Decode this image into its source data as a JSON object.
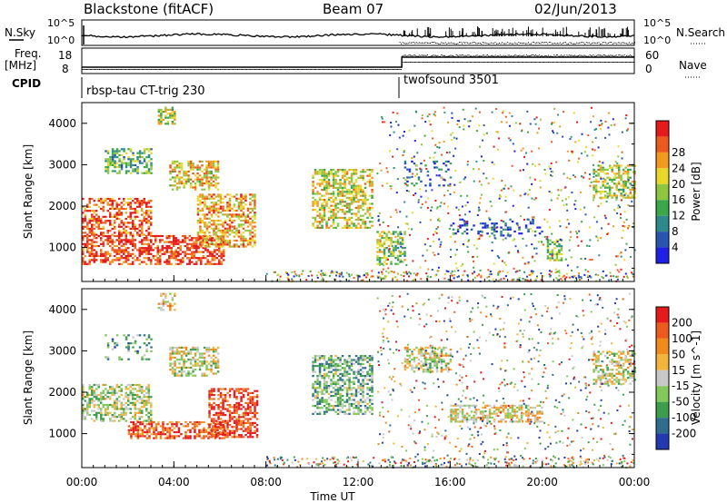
{
  "header": {
    "title": "Blackstone (fitACF)",
    "beam": "Beam 07",
    "date": "02/Jun/2013"
  },
  "noise_panel": {
    "left_label": "N.Sky",
    "right_label": "N.Search",
    "left_ticks": [
      "10^5",
      "10^0"
    ],
    "right_ticks": [
      "10^5",
      "10^0"
    ]
  },
  "freq_panel": {
    "left_label_1": "Freq.",
    "left_label_2": "[MHz]",
    "left_ticks": [
      "18",
      "8"
    ],
    "right_label": "Nave",
    "right_ticks": [
      "60",
      "0"
    ]
  },
  "cpid_panel": {
    "label": "CPID",
    "programs": [
      {
        "name": "rbsp-tau CT-trig 230",
        "start_hour": 0
      },
      {
        "name": "twofsound 3501",
        "start_hour": 14
      }
    ]
  },
  "x_axis": {
    "label": "Time UT",
    "ticks": [
      "00:00",
      "04:00",
      "08:00",
      "12:00",
      "16:00",
      "20:00",
      "00:00"
    ]
  },
  "chart_data": [
    {
      "type": "heatmap",
      "name": "power",
      "ylabel": "Slant Range [km]",
      "yticks": [
        1000,
        2000,
        3000,
        4000
      ],
      "ylim": [
        180,
        4500
      ],
      "xlim_hours": [
        0,
        24
      ],
      "colorbar": {
        "label": "Power [dB]",
        "ticks": [
          "4",
          "8",
          "12",
          "16",
          "20",
          "24",
          "28"
        ],
        "colors": [
          "#1f1fe6",
          "#2755b0",
          "#2e8a8a",
          "#3aa84a",
          "#8ec63f",
          "#e8d82a",
          "#f29a1e",
          "#ee5a1e",
          "#e41a1c"
        ]
      },
      "regions": [
        {
          "t0": 0,
          "t1": 3,
          "r0": 1300,
          "r1": 2200,
          "level": 0.85
        },
        {
          "t0": 1,
          "t1": 3,
          "r0": 2800,
          "r1": 3400,
          "level": 0.4
        },
        {
          "t0": 3.3,
          "t1": 4,
          "r0": 4000,
          "r1": 4400,
          "level": 0.55
        },
        {
          "t0": 3.8,
          "t1": 5.9,
          "r0": 2400,
          "r1": 3100,
          "level": 0.65
        },
        {
          "t0": 0,
          "t1": 6.2,
          "r0": 600,
          "r1": 1300,
          "level": 0.9
        },
        {
          "t0": 5,
          "t1": 7.5,
          "r0": 1000,
          "r1": 2300,
          "level": 0.7
        },
        {
          "t0": 10,
          "t1": 12.6,
          "r0": 1500,
          "r1": 2900,
          "level": 0.6
        },
        {
          "t0": 12.8,
          "t1": 14,
          "r0": 600,
          "r1": 1400,
          "level": 0.5
        },
        {
          "t0": 14,
          "t1": 16,
          "r0": 2500,
          "r1": 3100,
          "level": 0.2
        },
        {
          "t0": 16,
          "t1": 20,
          "r0": 1300,
          "r1": 1700,
          "level": 0.15
        },
        {
          "t0": 20.2,
          "t1": 20.8,
          "r0": 700,
          "r1": 1200,
          "level": 0.45
        },
        {
          "t0": 22.2,
          "t1": 24,
          "r0": 2200,
          "r1": 3000,
          "level": 0.55
        }
      ]
    },
    {
      "type": "heatmap",
      "name": "velocity",
      "ylabel": "Slant Range [km]",
      "yticks": [
        1000,
        2000,
        3000,
        4000
      ],
      "ylim": [
        180,
        4500
      ],
      "xlim_hours": [
        0,
        24
      ],
      "colorbar": {
        "label": "Velocity [m s^-1]",
        "ticks": [
          "200",
          "100",
          "50",
          "15",
          "-15",
          "-50",
          "-100",
          "-200"
        ],
        "colors": [
          "#2438b0",
          "#2e6d8c",
          "#3c9e4c",
          "#82c85a",
          "#c8c8c8",
          "#f2b53c",
          "#f08a1c",
          "#ee5a1e",
          "#e41a1c"
        ]
      },
      "regions": [
        {
          "t0": 0,
          "t1": 3,
          "r0": 1300,
          "r1": 2200,
          "level": 0.45
        },
        {
          "t0": 1,
          "t1": 3,
          "r0": 2800,
          "r1": 3400,
          "level": 0.3
        },
        {
          "t0": 3.3,
          "t1": 4,
          "r0": 4000,
          "r1": 4400,
          "level": 0.6
        },
        {
          "t0": 3.8,
          "t1": 5.9,
          "r0": 2400,
          "r1": 3100,
          "level": 0.5
        },
        {
          "t0": 2,
          "t1": 6.2,
          "r0": 900,
          "r1": 1300,
          "level": 0.85
        },
        {
          "t0": 5.5,
          "t1": 7.6,
          "r0": 900,
          "r1": 2100,
          "level": 0.9
        },
        {
          "t0": 10,
          "t1": 12.6,
          "r0": 1500,
          "r1": 2900,
          "level": 0.35
        },
        {
          "t0": 14,
          "t1": 16,
          "r0": 2500,
          "r1": 3100,
          "level": 0.5
        },
        {
          "t0": 16,
          "t1": 20,
          "r0": 1300,
          "r1": 1700,
          "level": 0.55
        },
        {
          "t0": 22.2,
          "t1": 24,
          "r0": 2200,
          "r1": 3000,
          "level": 0.5
        }
      ]
    }
  ]
}
